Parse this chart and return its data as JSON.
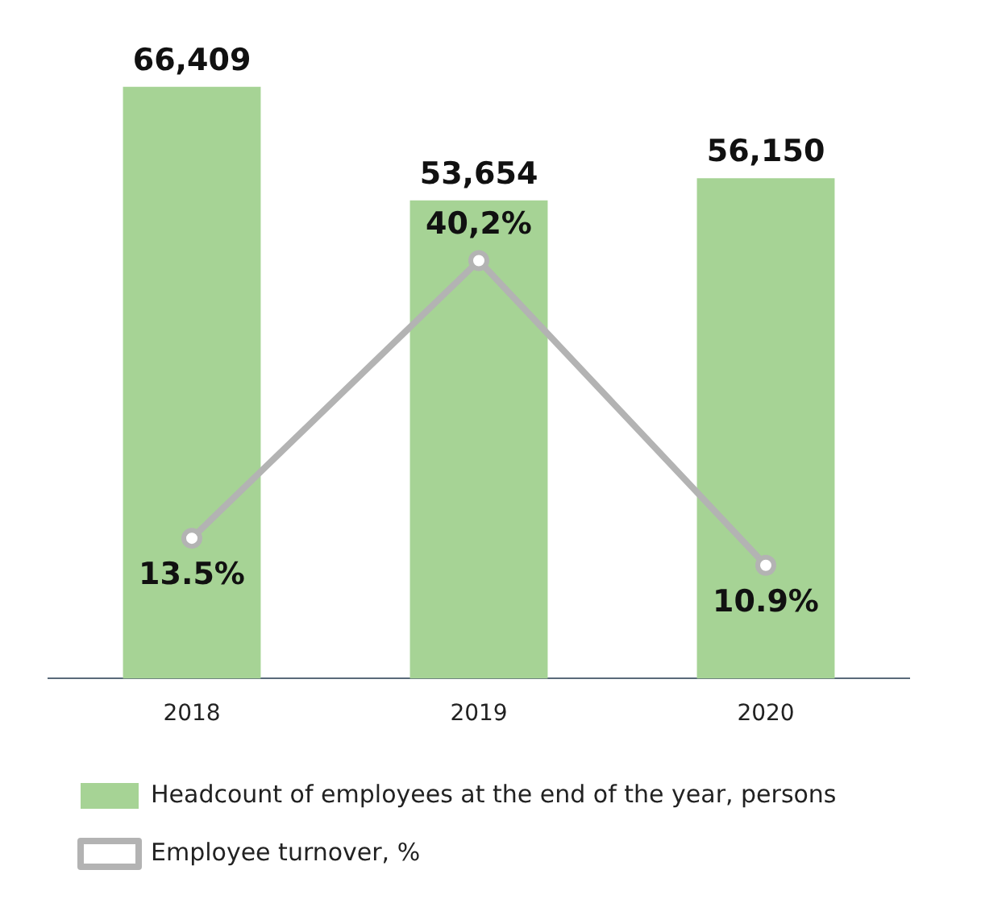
{
  "chart_data": {
    "type": "bar",
    "categories": [
      "2018",
      "2019",
      "2020"
    ],
    "series": [
      {
        "name": "Headcount of employees at the end of the year, persons",
        "color": "#a6d395",
        "values": [
          66409,
          53654,
          56150
        ],
        "value_labels": [
          "66,409",
          "53,654",
          "56,150"
        ]
      },
      {
        "name": "Employee turnover, %",
        "type": "line",
        "axis": "y2",
        "color": "#b3b3b3",
        "marker": "circle",
        "values": [
          13.5,
          40.2,
          10.9
        ],
        "value_labels": [
          "13.5%",
          "40,2%",
          "10.9%"
        ]
      }
    ],
    "tick_labels": "x",
    "grid": false,
    "legend": "bottom"
  }
}
